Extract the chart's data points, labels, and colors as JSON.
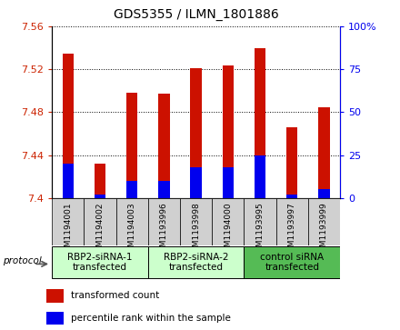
{
  "title": "GDS5355 / ILMN_1801886",
  "samples": [
    "GSM1194001",
    "GSM1194002",
    "GSM1194003",
    "GSM1193996",
    "GSM1193998",
    "GSM1194000",
    "GSM1193995",
    "GSM1193997",
    "GSM1193999"
  ],
  "red_values": [
    7.535,
    7.432,
    7.498,
    7.497,
    7.521,
    7.524,
    7.54,
    7.466,
    7.485
  ],
  "blue_percentiles": [
    20,
    2,
    10,
    10,
    18,
    18,
    25,
    2,
    5
  ],
  "ylim_left": [
    7.4,
    7.56
  ],
  "ylim_right": [
    0,
    100
  ],
  "left_ticks": [
    7.4,
    7.44,
    7.48,
    7.52,
    7.56
  ],
  "right_ticks": [
    0,
    25,
    50,
    75,
    100
  ],
  "right_tick_labels": [
    "0",
    "25",
    "50",
    "75",
    "100%"
  ],
  "groups": [
    {
      "label": "RBP2-siRNA-1\ntransfected",
      "indices": [
        0,
        1,
        2
      ],
      "color": "#ccffcc"
    },
    {
      "label": "RBP2-siRNA-2\ntransfected",
      "indices": [
        3,
        4,
        5
      ],
      "color": "#ccffcc"
    },
    {
      "label": "control siRNA\ntransfected",
      "indices": [
        6,
        7,
        8
      ],
      "color": "#55bb55"
    }
  ],
  "bar_width": 0.35,
  "red_color": "#cc1100",
  "blue_color": "#0000ee",
  "left_axis_color": "#cc2200",
  "right_axis_color": "#0000ee",
  "legend_red": "transformed count",
  "legend_blue": "percentile rank within the sample",
  "protocol_label": "protocol"
}
